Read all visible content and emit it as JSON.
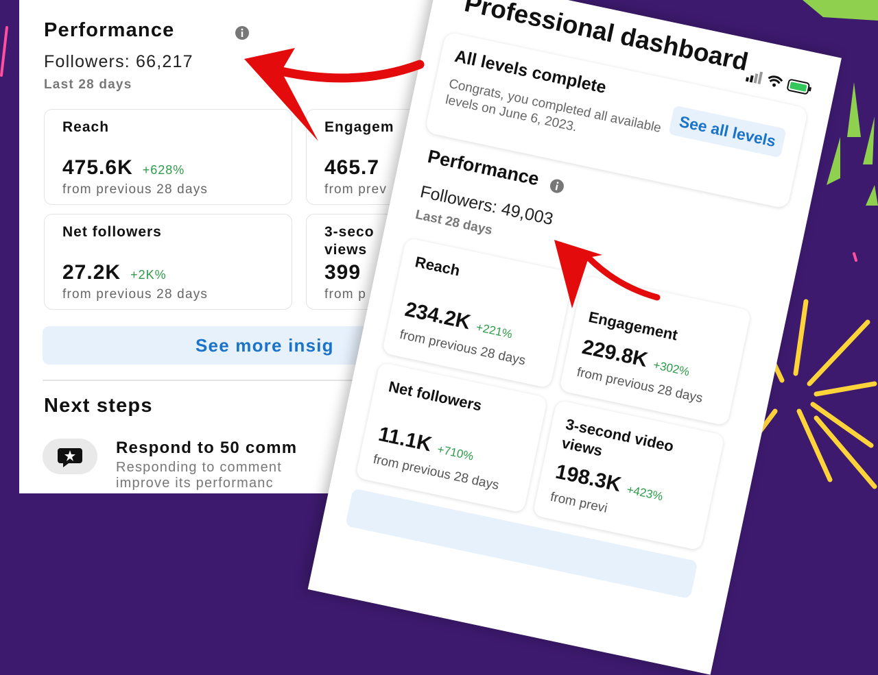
{
  "left_panel": {
    "performance": {
      "title": "Performance",
      "followers": "Followers: 66,217",
      "period": "Last 28 days"
    },
    "metrics": [
      {
        "label": "Reach",
        "value": "475.6K",
        "change": "+628%",
        "note": "from previous 28 days"
      },
      {
        "label": "Engagem",
        "value": "465.7",
        "note": "from prev"
      },
      {
        "label": "Net followers",
        "value": "27.2K",
        "change": "+2K%",
        "note": "from previous 28 days"
      },
      {
        "label": "3-seco",
        "label_line2": "views",
        "value": "399",
        "note": "from p"
      }
    ],
    "see_more": "See more insig",
    "next_steps": {
      "title": "Next steps",
      "item_title": "Respond to 50 comm",
      "item_lines": [
        "Responding to comment",
        "improve its performanc"
      ]
    }
  },
  "phone": {
    "title": "Professional dashboard",
    "levels": {
      "title": "All levels complete",
      "text": "Congrats, you completed all available levels on June 6, 2023.",
      "button": "See all levels"
    },
    "performance": {
      "title": "Performance",
      "followers": "Followers: 49,003",
      "period": "Last 28 days"
    },
    "metrics": [
      {
        "label": "Reach",
        "value": "234.2K",
        "change": "+221%",
        "note": "from previous 28 days"
      },
      {
        "label": "Engagement",
        "value": "229.8K",
        "change": "+302%",
        "note": "from previous 28 days"
      },
      {
        "label": "Net followers",
        "value": "11.1K",
        "change": "+710%",
        "note": "from previous 28 days"
      },
      {
        "label": "3-second video views",
        "value": "198.3K",
        "change": "+423%",
        "note": "from previ"
      }
    ]
  }
}
